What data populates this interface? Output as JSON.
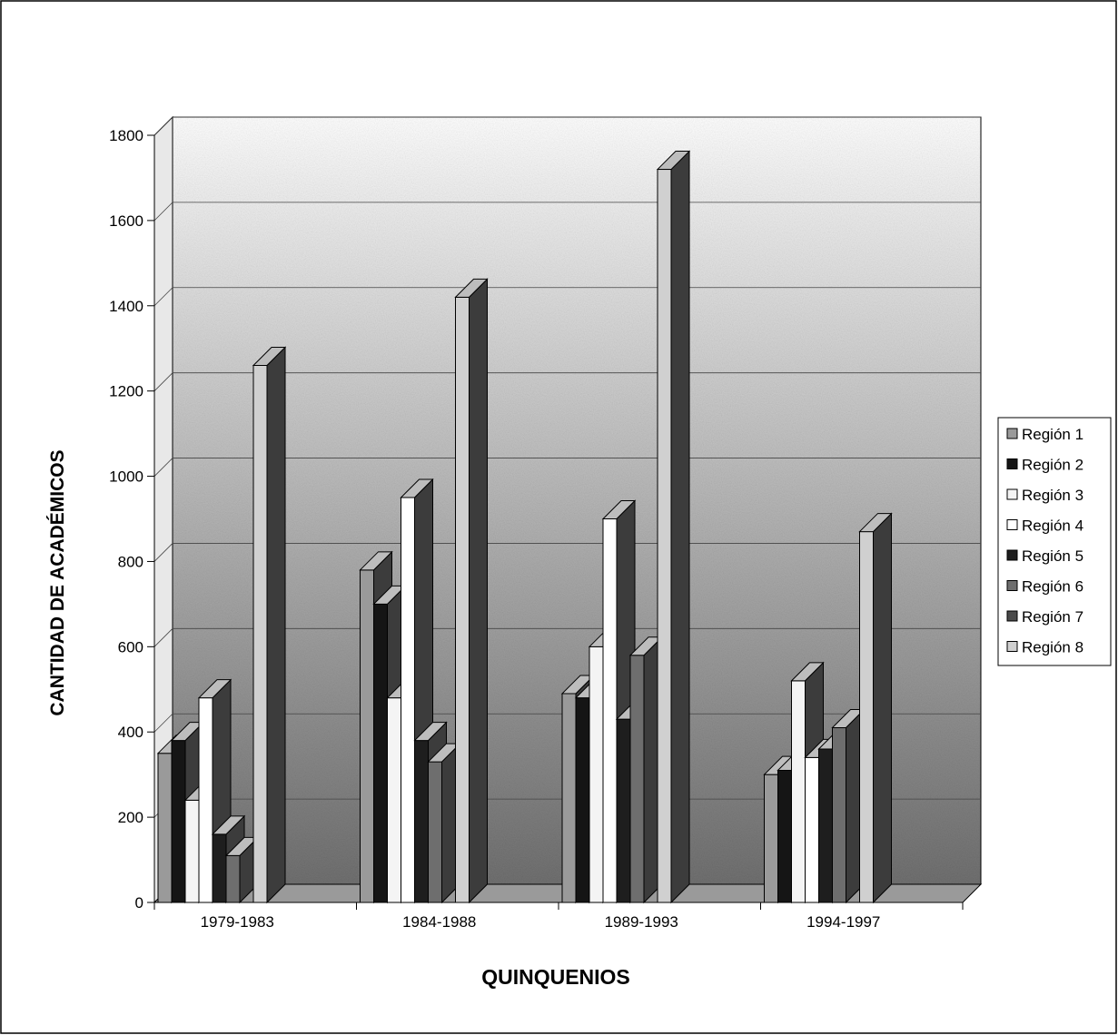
{
  "chart_data": {
    "type": "bar",
    "title": "",
    "xlabel": "QUINQUENIOS",
    "ylabel": "CANTIDAD DE ACADÉMICOS",
    "ylim": [
      0,
      1800
    ],
    "yticks": [
      0,
      200,
      400,
      600,
      800,
      1000,
      1200,
      1400,
      1600,
      1800
    ],
    "grid": true,
    "legend_position": "right",
    "categories": [
      "1979-1983",
      "1984-1988",
      "1989-1993",
      "1994-1997"
    ],
    "series": [
      {
        "name": "Región 1",
        "values": [
          350,
          780,
          490,
          300
        ],
        "color": "#9a9a9a"
      },
      {
        "name": "Región 2",
        "values": [
          380,
          700,
          480,
          310
        ],
        "color": "#151515"
      },
      {
        "name": "Región 3",
        "values": [
          240,
          480,
          600,
          520
        ],
        "color": "#f4f4f4"
      },
      {
        "name": "Región 4",
        "values": [
          480,
          950,
          900,
          340
        ],
        "color": "#ffffff"
      },
      {
        "name": "Región 5",
        "values": [
          160,
          380,
          430,
          360
        ],
        "color": "#1e1e1e"
      },
      {
        "name": "Región 6",
        "values": [
          110,
          330,
          580,
          410
        ],
        "color": "#6e6e6e"
      },
      {
        "name": "Región 7",
        "values": [
          0,
          0,
          0,
          0
        ],
        "color": "#4a4a4a"
      },
      {
        "name": "Región 8",
        "values": [
          1260,
          1420,
          1720,
          870
        ],
        "color": "#d0d0d0"
      }
    ],
    "colors": {
      "wall_top": "#ffffff",
      "wall_bottom": "#707070",
      "side_shade": "#3c3c3c",
      "top_shade": "#bdbdbd",
      "grid": "#444444",
      "frame": "#000000"
    }
  }
}
